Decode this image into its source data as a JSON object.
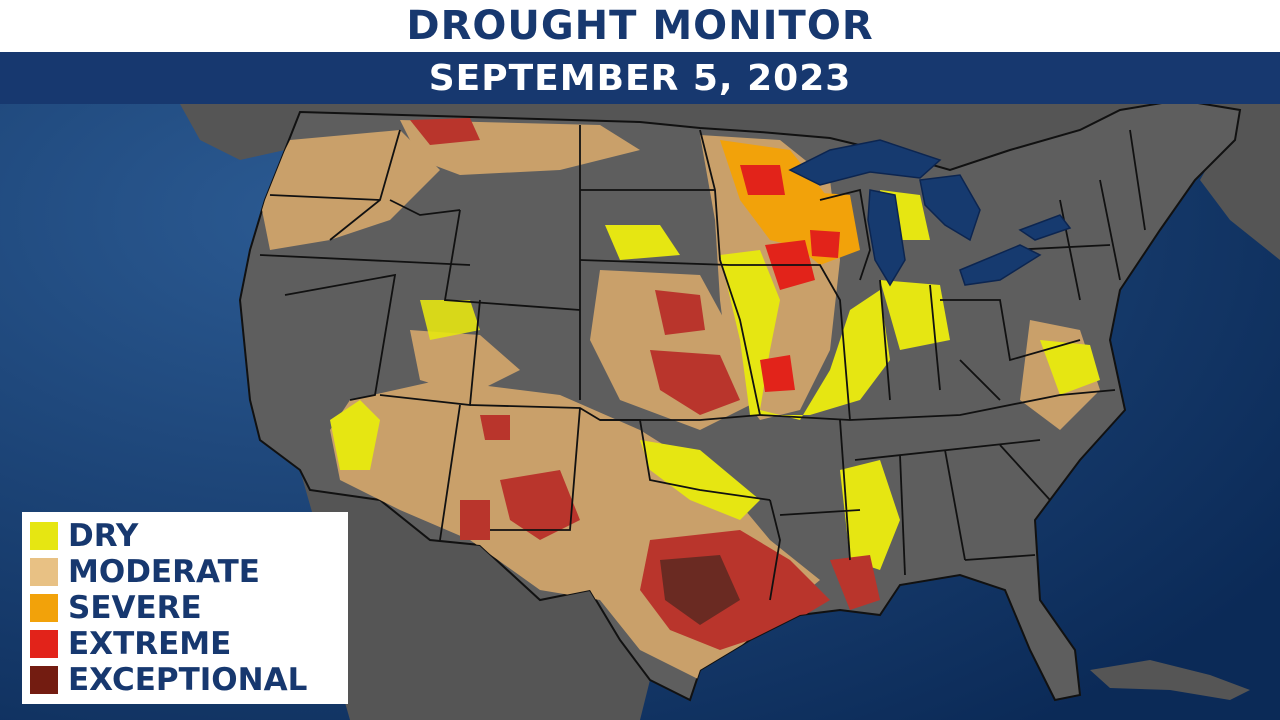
{
  "header": {
    "title": "DROUGHT MONITOR",
    "date": "SEPTEMBER 5, 2023"
  },
  "legend": {
    "items": [
      {
        "label": "DRY",
        "color": "#e6e612"
      },
      {
        "label": "MODERATE",
        "color": "#e8c184"
      },
      {
        "label": "SEVERE",
        "color": "#f2a20a"
      },
      {
        "label": "EXTREME",
        "color": "#e2231a"
      },
      {
        "label": "EXCEPTIONAL",
        "color": "#731c11"
      }
    ]
  },
  "colors": {
    "ocean": "#0e2f5f",
    "land": "#5e5e5e",
    "state_border": "#111111",
    "header_navy": "#17386f"
  }
}
